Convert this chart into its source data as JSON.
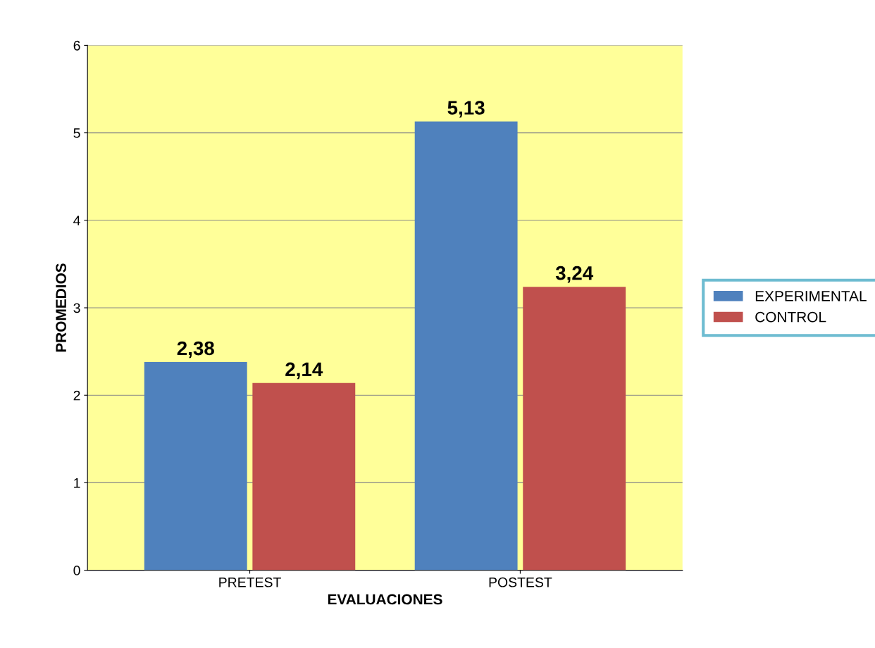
{
  "chart_data": {
    "type": "bar",
    "xlabel": "EVALUACIONES",
    "ylabel": "PROMEDIOS",
    "categories": [
      "PRETEST",
      "POSTEST"
    ],
    "series": [
      {
        "name": "EXPERIMENTAL",
        "color": "#4f81bd",
        "values": [
          2.38,
          5.13
        ],
        "value_labels": [
          "2,38",
          "5,13"
        ]
      },
      {
        "name": "CONTROL",
        "color": "#c0504d",
        "values": [
          2.14,
          3.24
        ],
        "value_labels": [
          "2,14",
          "3,24"
        ]
      }
    ],
    "ylim": [
      0,
      6
    ],
    "yticks": [
      0,
      1,
      2,
      3,
      4,
      5,
      6
    ],
    "grid": "y",
    "legend": "right"
  }
}
